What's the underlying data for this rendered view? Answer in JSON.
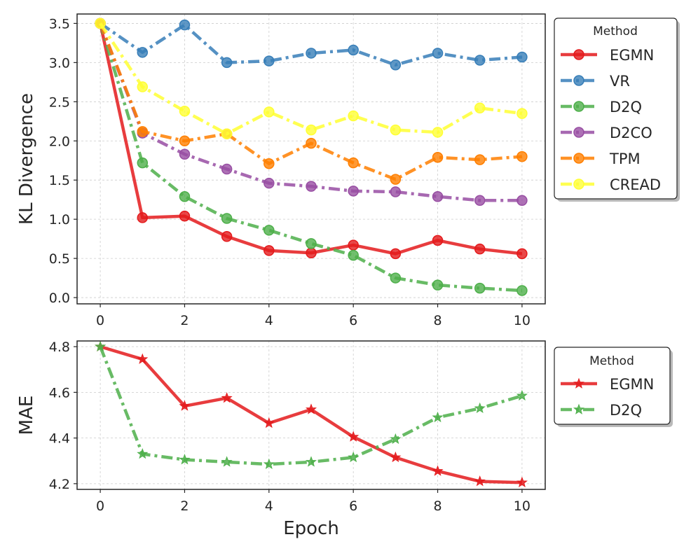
{
  "chart_data": [
    {
      "type": "line",
      "title": "",
      "xlabel": "",
      "ylabel": "KL Divergence",
      "xlim": [
        -0.55,
        10.55
      ],
      "ylim": [
        -0.08,
        3.62
      ],
      "xticks": [
        0,
        2,
        4,
        6,
        8,
        10
      ],
      "xtick_labels": [
        "0",
        "2",
        "4",
        "6",
        "8",
        "10"
      ],
      "yticks": [
        0.0,
        0.5,
        1.0,
        1.5,
        2.0,
        2.5,
        3.0,
        3.5
      ],
      "ytick_labels": [
        "0.0",
        "0.5",
        "1.0",
        "1.5",
        "2.0",
        "2.5",
        "3.0",
        "3.5"
      ],
      "grid": true,
      "legend": {
        "title": "Method",
        "placement": "outside-right-top"
      },
      "x": [
        0,
        1,
        2,
        3,
        4,
        5,
        6,
        7,
        8,
        9,
        10
      ],
      "series": [
        {
          "name": "EGMN",
          "color": "#e41a1c",
          "dash": "solid",
          "marker": "circle",
          "values": [
            3.5,
            1.02,
            1.04,
            0.78,
            0.6,
            0.57,
            0.67,
            0.56,
            0.73,
            0.62,
            0.56
          ]
        },
        {
          "name": "VR",
          "color": "#377eb8",
          "dash": "dashdot",
          "marker": "circle",
          "values": [
            3.5,
            3.13,
            3.48,
            3.0,
            3.02,
            3.12,
            3.16,
            2.97,
            3.12,
            3.03,
            3.07
          ]
        },
        {
          "name": "D2Q",
          "color": "#4daf4a",
          "dash": "dashdot",
          "marker": "circle",
          "values": [
            3.5,
            1.72,
            1.29,
            1.01,
            0.86,
            0.69,
            0.54,
            0.25,
            0.16,
            0.12,
            0.09
          ]
        },
        {
          "name": "D2CO",
          "color": "#984ea3",
          "dash": "dashdot",
          "marker": "circle",
          "values": [
            3.5,
            2.1,
            1.83,
            1.64,
            1.46,
            1.42,
            1.36,
            1.35,
            1.29,
            1.24,
            1.24
          ]
        },
        {
          "name": "TPM",
          "color": "#ff7f00",
          "dash": "dashdot",
          "marker": "circle",
          "values": [
            3.5,
            2.12,
            2.0,
            2.09,
            1.71,
            1.97,
            1.72,
            1.51,
            1.79,
            1.76,
            1.8
          ]
        },
        {
          "name": "CREAD",
          "color": "#ffff33",
          "dash": "dashdot",
          "marker": "circle",
          "values": [
            3.5,
            2.69,
            2.38,
            2.09,
            2.37,
            2.14,
            2.32,
            2.14,
            2.11,
            2.42,
            2.35
          ]
        }
      ]
    },
    {
      "type": "line",
      "title": "",
      "xlabel": "Epoch",
      "ylabel": "MAE",
      "xlim": [
        -0.55,
        10.55
      ],
      "ylim": [
        4.175,
        4.825
      ],
      "xticks": [
        0,
        2,
        4,
        6,
        8,
        10
      ],
      "xtick_labels": [
        "0",
        "2",
        "4",
        "6",
        "8",
        "10"
      ],
      "yticks": [
        4.2,
        4.4,
        4.6,
        4.8
      ],
      "ytick_labels": [
        "4.2",
        "4.4",
        "4.6",
        "4.8"
      ],
      "grid": true,
      "legend": {
        "title": "Method",
        "placement": "outside-right-top"
      },
      "x": [
        0,
        1,
        2,
        3,
        4,
        5,
        6,
        7,
        8,
        9,
        10
      ],
      "series": [
        {
          "name": "EGMN",
          "color": "#e41a1c",
          "dash": "solid",
          "marker": "star",
          "values": [
            4.8,
            4.745,
            4.54,
            4.575,
            4.465,
            4.525,
            4.405,
            4.315,
            4.255,
            4.21,
            4.205
          ]
        },
        {
          "name": "D2Q",
          "color": "#4daf4a",
          "dash": "dashdot",
          "marker": "star",
          "values": [
            4.8,
            4.33,
            4.305,
            4.295,
            4.285,
            4.295,
            4.315,
            4.395,
            4.49,
            4.53,
            4.585
          ]
        }
      ]
    }
  ]
}
